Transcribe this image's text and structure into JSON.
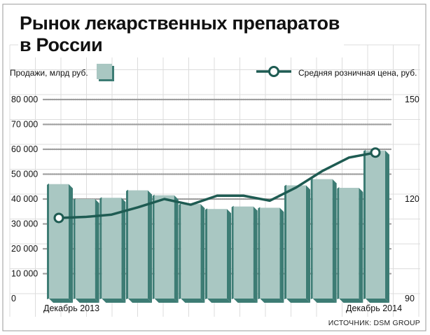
{
  "title_lines": [
    "Рынок лекарственных препаратов",
    "в России"
  ],
  "legend": {
    "bars_label": "Продажи, млрд руб.",
    "line_label": "Средняя розничная цена, руб."
  },
  "source": "ИСТОЧНИК: DSM GROUP",
  "colors": {
    "bar_face": "#a9c7c2",
    "bar_side": "#3d7c74",
    "line": "#1e5b52",
    "grid": "#b9b9b9"
  },
  "chart_data": {
    "type": "bar",
    "x_labels": [
      "Декабрь 2013",
      "Декабрь 2014"
    ],
    "left_axis": {
      "ticks": [
        "0",
        "10 000",
        "20 000",
        "30 000",
        "40 000",
        "50 000",
        "60 000",
        "70 000",
        "80 000"
      ],
      "ylim": [
        0,
        80000
      ]
    },
    "right_axis": {
      "ticks": [
        "90",
        "120",
        "150"
      ],
      "ylim": [
        90,
        150
      ]
    },
    "bars": {
      "name": "Продажи, млрд руб.",
      "values": [
        46000,
        40000,
        40500,
        43500,
        41500,
        38000,
        36000,
        37000,
        36500,
        45500,
        48000,
        44500,
        59500
      ]
    },
    "line": {
      "name": "Средняя розничная цена, руб.",
      "values": [
        114.3,
        114.6,
        115.3,
        117.5,
        120.0,
        118.3,
        121.0,
        121.0,
        119.5,
        123.5,
        128.5,
        132.5,
        134.0
      ]
    }
  }
}
